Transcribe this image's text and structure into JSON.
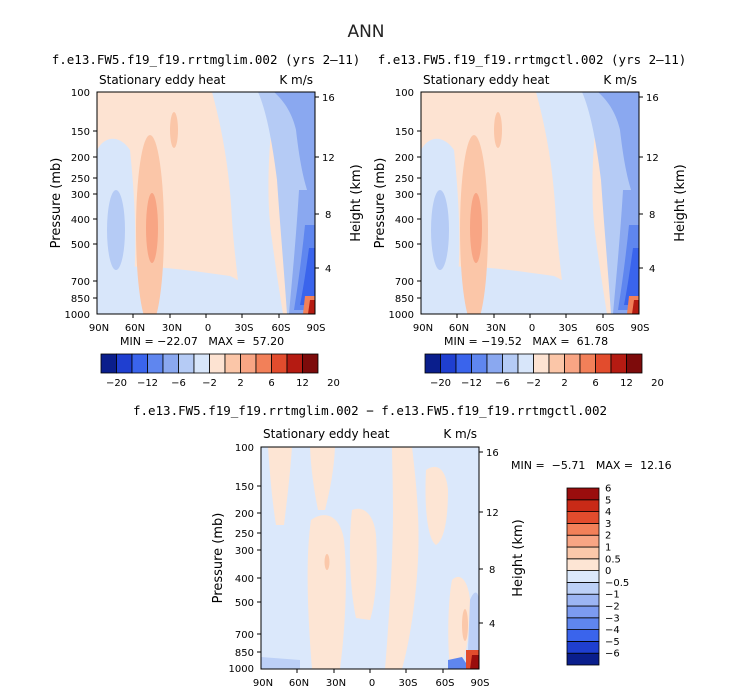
{
  "title": "ANN",
  "chart_data": [
    {
      "type": "heatmap",
      "title": "f.e13.FW5.f19_f19.rrtmglim.002 (yrs 2–11)",
      "subtitle_left": "Stationary eddy heat",
      "subtitle_right": "K m/s",
      "xlabel": "",
      "ylabel": "Pressure (mb)",
      "ylabel_right": "Height (km)",
      "x_ticks": [
        "90N",
        "60N",
        "30N",
        "0",
        "30S",
        "60S",
        "90S"
      ],
      "y_ticks": [
        "100",
        "150",
        "200",
        "250",
        "300",
        "400",
        "500",
        "700",
        "850",
        "1000"
      ],
      "y_right_ticks": [
        "16",
        "12",
        "8",
        "4"
      ],
      "y_scale": "log",
      "stats": {
        "min": "−22.07",
        "max": "57.20"
      },
      "stats_text": "MIN = −22.07   MAX =  57.20"
    },
    {
      "type": "heatmap",
      "title": "f.e13.FW5.f19_f19.rrtmgctl.002 (yrs 2–11)",
      "subtitle_left": "Stationary eddy heat",
      "subtitle_right": "K m/s",
      "xlabel": "",
      "ylabel": "Pressure (mb)",
      "ylabel_right": "Height (km)",
      "x_ticks": [
        "90N",
        "60N",
        "30N",
        "0",
        "30S",
        "60S",
        "90S"
      ],
      "y_ticks": [
        "100",
        "150",
        "200",
        "250",
        "300",
        "400",
        "500",
        "700",
        "850",
        "1000"
      ],
      "y_right_ticks": [
        "16",
        "12",
        "8",
        "4"
      ],
      "y_scale": "log",
      "stats": {
        "min": "−19.52",
        "max": "61.78"
      },
      "stats_text": "MIN = −19.52   MAX =  61.78"
    },
    {
      "type": "heatmap",
      "title": "f.e13.FW5.f19_f19.rrtmglim.002 − f.e13.FW5.f19_f19.rrtmgctl.002",
      "subtitle_left": "Stationary eddy heat",
      "subtitle_right": "K m/s",
      "xlabel": "",
      "ylabel": "Pressure (mb)",
      "ylabel_right": "Height (km)",
      "x_ticks": [
        "90N",
        "60N",
        "30N",
        "0",
        "30S",
        "60S",
        "90S"
      ],
      "y_ticks": [
        "100",
        "150",
        "200",
        "250",
        "300",
        "400",
        "500",
        "700",
        "850",
        "1000"
      ],
      "y_right_ticks": [
        "16",
        "12",
        "8",
        "4"
      ],
      "y_scale": "log",
      "stats": {
        "min": "−5.71",
        "max": "12.16"
      },
      "stats_text": "MIN =  −5.71   MAX =  12.16"
    }
  ],
  "colorbar_top": {
    "colors": [
      "#0a1e8c",
      "#1f3fd0",
      "#3a64ec",
      "#5f86ef",
      "#8aa8f0",
      "#b5cbf5",
      "#d8e6fa",
      "#fde3d2",
      "#fbc6a8",
      "#f8a584",
      "#f28059",
      "#e24c2d",
      "#b51b12",
      "#7d0b0b"
    ],
    "labels": [
      "−20",
      "−12",
      "−6",
      "−2",
      "2",
      "6",
      "12",
      "20"
    ]
  },
  "colorbar_bottom": {
    "colors": [
      "#0a1e8c",
      "#1f3fd0",
      "#3a64ec",
      "#5f86ef",
      "#7c9bf0",
      "#9cb5f3",
      "#bcd0f7",
      "#dbe8fb",
      "#fde5d4",
      "#fbc8aa",
      "#f8a584",
      "#f28059",
      "#e24c2d",
      "#c92a17",
      "#9a0d0d"
    ],
    "labels": [
      "−6",
      "−5",
      "−4",
      "−3",
      "−2",
      "−1",
      "−0.5",
      "0",
      "0.5",
      "1",
      "2",
      "3",
      "4",
      "5",
      "6"
    ]
  }
}
